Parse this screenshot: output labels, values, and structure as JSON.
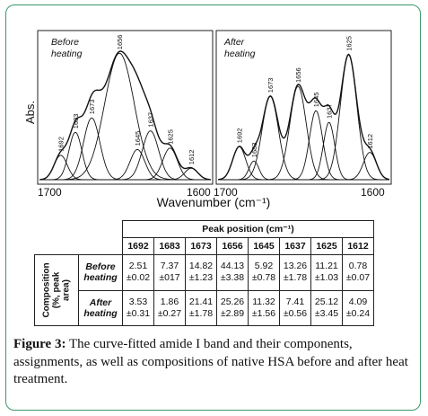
{
  "panels": [
    {
      "label_line1": "Before",
      "label_line2": "heating",
      "x_left_label": "1700",
      "x_right_label": "1600",
      "peaks": [
        {
          "wn": "1692",
          "pos": 1692,
          "height": 0.17,
          "width": 4
        },
        {
          "wn": "1683",
          "pos": 1683,
          "height": 0.33,
          "width": 4
        },
        {
          "wn": "1673",
          "pos": 1673,
          "height": 0.43,
          "width": 5
        },
        {
          "wn": "1656",
          "pos": 1656,
          "height": 0.88,
          "width": 9
        },
        {
          "wn": "1645",
          "pos": 1645,
          "height": 0.21,
          "width": 4.5
        },
        {
          "wn": "1637",
          "pos": 1637,
          "height": 0.34,
          "width": 5
        },
        {
          "wn": "1625",
          "pos": 1625,
          "height": 0.22,
          "width": 4.5
        },
        {
          "wn": "1612",
          "pos": 1612,
          "height": 0.08,
          "width": 4
        }
      ]
    },
    {
      "label_line1": "After",
      "label_line2": "heating",
      "x_left_label": "1700",
      "x_right_label": "1600",
      "peaks": [
        {
          "wn": "1692",
          "pos": 1692,
          "height": 0.23,
          "width": 4
        },
        {
          "wn": "1683",
          "pos": 1683,
          "height": 0.13,
          "width": 3
        },
        {
          "wn": "1673",
          "pos": 1673,
          "height": 0.58,
          "width": 5
        },
        {
          "wn": "1656",
          "pos": 1656,
          "height": 0.65,
          "width": 5
        },
        {
          "wn": "1645",
          "pos": 1645,
          "height": 0.48,
          "width": 4
        },
        {
          "wn": "1637",
          "pos": 1637,
          "height": 0.4,
          "width": 3.5
        },
        {
          "wn": "1625",
          "pos": 1625,
          "height": 0.87,
          "width": 5
        },
        {
          "wn": "1612",
          "pos": 1612,
          "height": 0.19,
          "width": 4
        }
      ]
    }
  ],
  "y_axis_label": "Abs.",
  "x_axis_label": "Wavenumber (cm⁻¹)",
  "table": {
    "group_header": "Peak position (cm⁻¹)",
    "columns": [
      "1692",
      "1683",
      "1673",
      "1656",
      "1645",
      "1637",
      "1625",
      "1612"
    ],
    "composition_label_line1": "Composition",
    "composition_label_line2": "(%, peak",
    "composition_label_line3": "area)",
    "rows": [
      {
        "label_line1": "Before",
        "label_line2": "heating",
        "means": [
          "2.51",
          "7.37",
          "14.82",
          "44.13",
          "5.92",
          "13.26",
          "11.21",
          "0.78"
        ],
        "errors": [
          "±0.02",
          "±017",
          "±1.23",
          "±3.38",
          "±0.78",
          "±1.78",
          "±1.03",
          "±0.07"
        ]
      },
      {
        "label_line1": "After",
        "label_line2": "heating",
        "means": [
          "3.53",
          "1.86",
          "21.41",
          "25.26",
          "11.32",
          "7.41",
          "25.12",
          "4.09"
        ],
        "errors": [
          "±0.31",
          "±0.27",
          "±1.78",
          "±2.89",
          "±1.56",
          "±0.56",
          "±3.45",
          "±0.24"
        ]
      }
    ]
  },
  "caption": {
    "label": "Figure 3:",
    "text": " The curve-fitted amide I band and their components, assignments, as well as compositions of native HSA before and after heat treatment."
  }
}
